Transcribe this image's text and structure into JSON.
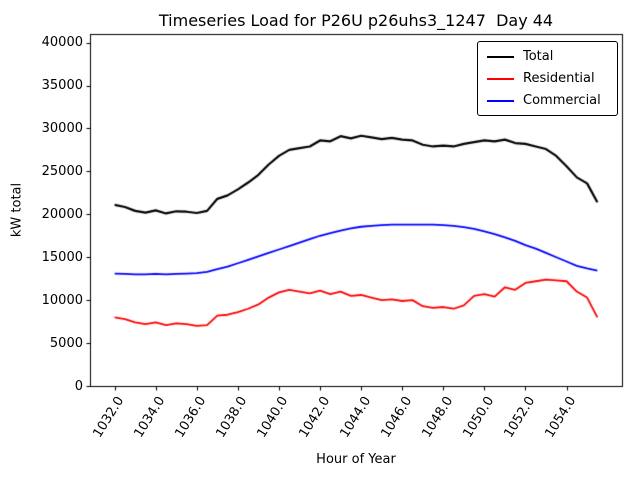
{
  "chart_data": {
    "type": "line",
    "title": "Timeseries Load for P26U p26uhs3_1247  Day 44",
    "xlabel": "Hour of Year",
    "ylabel": "kW total",
    "xlim": [
      1030.8,
      1056.7
    ],
    "ylim": [
      0,
      41000
    ],
    "grid": false,
    "legend_position": "upper right",
    "background_color": "#ffffff",
    "axis_color": "#000000",
    "xticks": {
      "values": [
        1032,
        1034,
        1036,
        1038,
        1040,
        1042,
        1044,
        1046,
        1048,
        1050,
        1052,
        1054
      ],
      "labels": [
        "1032.0",
        "1034.0",
        "1036.0",
        "1038.0",
        "1040.0",
        "1042.0",
        "1044.0",
        "1046.0",
        "1048.0",
        "1050.0",
        "1052.0",
        "1054.0"
      ]
    },
    "yticks": {
      "values": [
        0,
        5000,
        10000,
        15000,
        20000,
        25000,
        30000,
        35000,
        40000
      ],
      "labels": [
        "0",
        "5000",
        "10000",
        "15000",
        "20000",
        "25000",
        "30000",
        "35000",
        "40000"
      ]
    },
    "x": [
      1032.0,
      1032.5,
      1033.0,
      1033.5,
      1034.0,
      1034.5,
      1035.0,
      1035.5,
      1036.0,
      1036.5,
      1037.0,
      1037.5,
      1038.0,
      1038.5,
      1039.0,
      1039.5,
      1040.0,
      1040.5,
      1041.0,
      1041.5,
      1042.0,
      1042.5,
      1043.0,
      1043.5,
      1044.0,
      1044.5,
      1045.0,
      1045.5,
      1046.0,
      1046.5,
      1047.0,
      1047.5,
      1048.0,
      1048.5,
      1049.0,
      1049.5,
      1050.0,
      1050.5,
      1051.0,
      1051.5,
      1052.0,
      1052.5,
      1053.0,
      1053.5,
      1054.0,
      1054.5,
      1055.0,
      1055.5
    ],
    "series": [
      {
        "name": "Total",
        "color": "#000000",
        "values": [
          21100,
          20850,
          20400,
          20200,
          20450,
          20100,
          20350,
          20300,
          20150,
          20400,
          21800,
          22200,
          22900,
          23700,
          24600,
          25800,
          26800,
          27500,
          27700,
          27900,
          28600,
          28500,
          29100,
          28850,
          29150,
          28950,
          28750,
          28900,
          28700,
          28600,
          28100,
          27900,
          28000,
          27900,
          28200,
          28400,
          28600,
          28500,
          28700,
          28300,
          28200,
          27900,
          27600,
          26800,
          25600,
          24300,
          23600,
          21400
        ]
      },
      {
        "name": "Residential",
        "color": "#ff0000",
        "values": [
          8000,
          7800,
          7400,
          7200,
          7400,
          7100,
          7300,
          7200,
          7000,
          7100,
          8200,
          8300,
          8600,
          9000,
          9500,
          10300,
          10900,
          11200,
          11000,
          10800,
          11100,
          10700,
          11000,
          10500,
          10600,
          10300,
          10000,
          10100,
          9900,
          10000,
          9300,
          9100,
          9200,
          9000,
          9400,
          10500,
          10700,
          10400,
          11500,
          11200,
          12000,
          12200,
          12400,
          12300,
          12200,
          11000,
          10300,
          8000
        ]
      },
      {
        "name": "Commercial",
        "color": "#0000ff",
        "values": [
          13100,
          13050,
          13000,
          13000,
          13050,
          13000,
          13050,
          13100,
          13150,
          13300,
          13600,
          13900,
          14300,
          14700,
          15100,
          15500,
          15900,
          16300,
          16700,
          17100,
          17500,
          17800,
          18100,
          18350,
          18550,
          18650,
          18750,
          18800,
          18800,
          18800,
          18800,
          18800,
          18750,
          18650,
          18500,
          18300,
          18000,
          17700,
          17300,
          16900,
          16400,
          16000,
          15500,
          15000,
          14500,
          14000,
          13700,
          13450
        ]
      }
    ]
  }
}
